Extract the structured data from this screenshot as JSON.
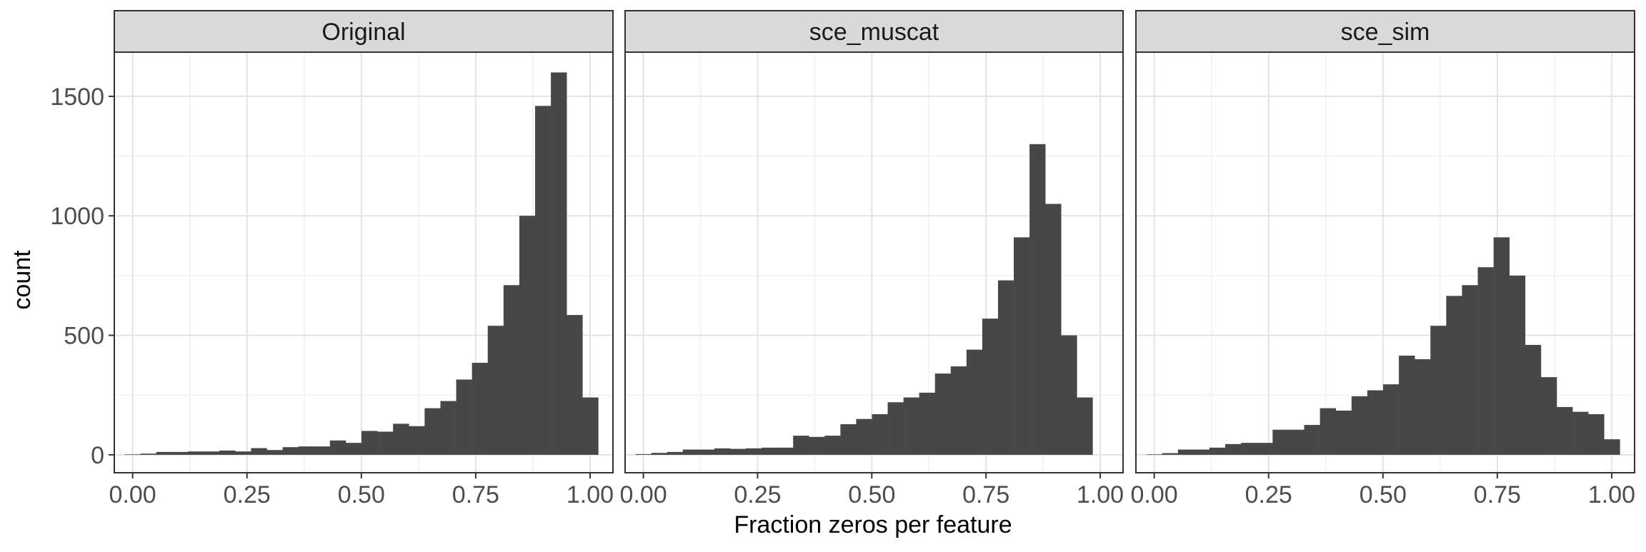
{
  "chart_data": {
    "type": "bar",
    "subtype": "histogram-facets",
    "xlabel": "Fraction zeros per feature",
    "ylabel": "count",
    "xlim": [
      -0.04,
      1.05
    ],
    "ylim": [
      -75,
      1685
    ],
    "x_ticks": [
      0,
      0.25,
      0.5,
      0.75,
      1
    ],
    "x_tick_labels": [
      "0.00",
      "0.25",
      "0.50",
      "0.75",
      "1.00"
    ],
    "y_ticks": [
      0,
      500,
      1000,
      1500
    ],
    "y_tick_labels": [
      "0",
      "500",
      "1000",
      "1500"
    ],
    "grid": true,
    "bin_width": 0.0345,
    "bin_start": -0.0172,
    "facets": [
      {
        "title": "Original",
        "values": [
          2,
          5,
          12,
          12,
          14,
          14,
          18,
          14,
          28,
          20,
          32,
          35,
          35,
          60,
          50,
          100,
          97,
          130,
          120,
          195,
          225,
          315,
          385,
          540,
          710,
          1000,
          1460,
          1600,
          585,
          240
        ]
      },
      {
        "title": "sce_muscat",
        "values": [
          3,
          8,
          12,
          22,
          22,
          27,
          25,
          27,
          30,
          30,
          80,
          75,
          80,
          128,
          150,
          170,
          220,
          240,
          260,
          340,
          370,
          440,
          570,
          730,
          910,
          1300,
          1050,
          500,
          240,
          0
        ]
      },
      {
        "title": "sce_sim",
        "values": [
          2,
          7,
          22,
          22,
          30,
          45,
          50,
          50,
          105,
          105,
          125,
          195,
          185,
          245,
          270,
          295,
          415,
          400,
          540,
          665,
          710,
          785,
          910,
          750,
          460,
          325,
          200,
          180,
          170,
          65
        ]
      }
    ]
  }
}
